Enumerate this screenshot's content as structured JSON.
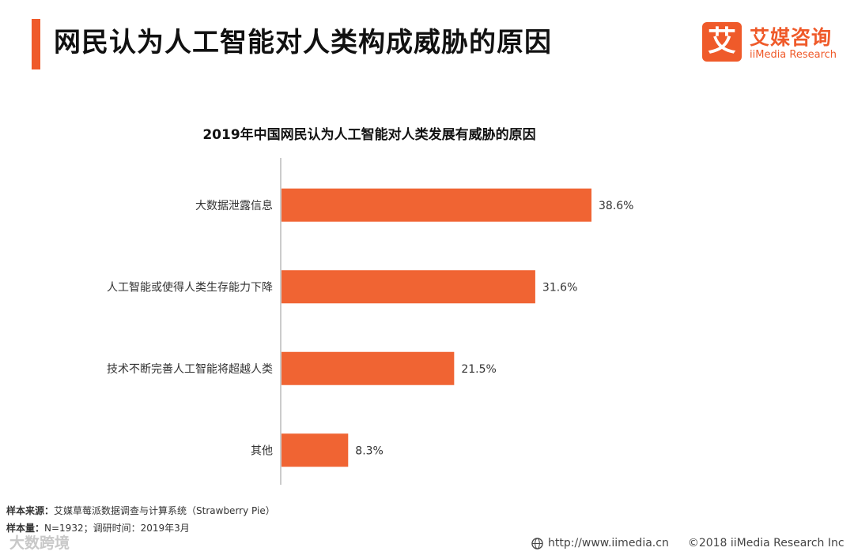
{
  "header": {
    "title": "网民认为人工智能对人类构成威胁的原因",
    "brand_mark": "艾",
    "brand_cn": "艾媒咨询",
    "brand_en": "iiMedia Research",
    "accent_color": "#ef5a2a"
  },
  "chart_data": {
    "type": "bar",
    "orientation": "horizontal",
    "title": "2019年中国网民认为人工智能对人类发展有威胁的原因",
    "categories": [
      "大数据泄露信息",
      "人工智能或使得人类生存能力下降",
      "技术不断完善人工智能将超越人类",
      "其他"
    ],
    "values": [
      38.6,
      31.6,
      21.5,
      8.3
    ],
    "labels": [
      "38.6%",
      "31.6%",
      "21.5%",
      "8.3%"
    ],
    "unit": "%",
    "xlim": [
      0,
      40
    ],
    "bar_color": "#f06433",
    "grid": false,
    "xlabel": "",
    "ylabel": ""
  },
  "footer": {
    "source_label": "样本来源：",
    "source_text": "艾媒草莓派数据调查与计算系统（Strawberry Pie）",
    "sample_label": "样本量：",
    "sample_text": "N=1932；调研时间：2019年3月",
    "url": "http://www.iimedia.cn",
    "copyright": "©2018 iiMedia Research Inc",
    "watermark": "大数跨境"
  }
}
